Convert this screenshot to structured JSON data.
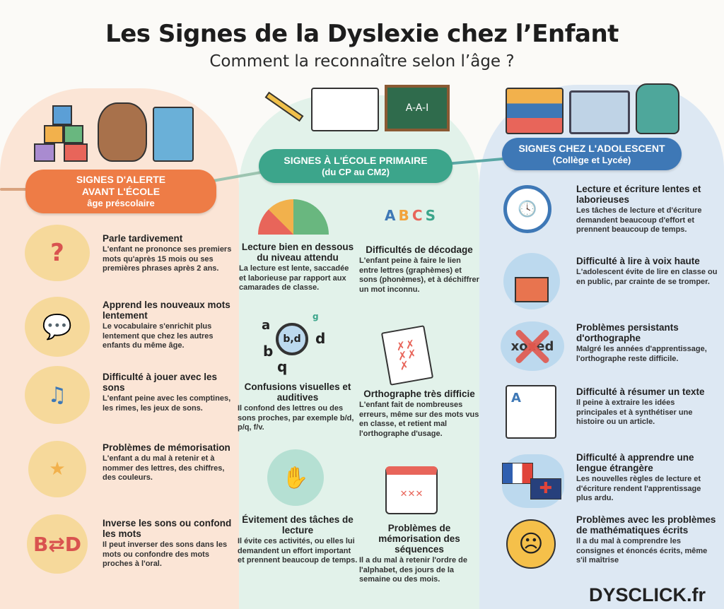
{
  "header": {
    "title": "Les Signes de la Dyslexie chez l’Enfant",
    "subtitle": "Comment la reconnaître selon l’âge ?"
  },
  "colors": {
    "preschool": "#ee7c46",
    "primary": "#3ca58b",
    "teen": "#3e78b6"
  },
  "sections": {
    "preschool": {
      "badge_line1": "SIGNES D'ALERTE",
      "badge_line2": "AVANT L'ÉCOLE",
      "badge_line3": "âge préscolaire",
      "illustration_icons": [
        "blocks-icon",
        "teddy-bear-icon",
        "picture-book-icon"
      ],
      "items": [
        {
          "title": "Parle tardivement",
          "text": "L'enfant ne prononce ses premiers mots qu'après 15 mois ou ses premières phrases après 2 ans.",
          "icon": "confused-child-clock-icon"
        },
        {
          "title": "Apprend les nouveaux mots lentement",
          "text": "Le vocabulaire s'enrichit plus lentement que chez les autres enfants du même âge.",
          "icon": "speech-bubbles-icon"
        },
        {
          "title": "Difficulté à jouer avec les sons",
          "text": "L'enfant peine avec les comptines, les rimes, les jeux de sons.",
          "icon": "singing-child-icon"
        },
        {
          "title": "Problèmes de mémorisation",
          "text": "L'enfant a du mal à retenir et à nommer des lettres, des chiffres, des couleurs.",
          "icon": "memory-cards-icon"
        },
        {
          "title": "Inverse les sons ou confond les mots",
          "text": "Il peut inverser des sons dans les mots ou confondre des mots proches à l'oral.",
          "icon": "swap-letters-icon"
        }
      ]
    },
    "primary": {
      "badge_line1": "SIGNES À L'ÉCOLE PRIMAIRE",
      "badge_line2": "(du CP au CM2)",
      "illustration_icons": [
        "pencils-icon",
        "open-book-icon",
        "chalkboard-icon"
      ],
      "chalkboard_text": "A-A-I",
      "items": [
        {
          "title": "Lecture bien en dessous du niveau attendu",
          "text": "La lecture est lente, saccadée et laborieuse par rapport aux camarades de classe.",
          "icon": "gauge-icon"
        },
        {
          "title": "Difficultés de décodage",
          "text": "L'enfant peine à faire le lien entre lettres (graphèmes) et sons (phonèmes), et à déchiffrer un mot inconnu.",
          "icon": "letters-sounds-icon",
          "letters": [
            "A",
            "B",
            "C",
            "S"
          ]
        },
        {
          "title": "Confusions visuelles et auditives",
          "text": "Il confond des lettres ou des sons proches, par exemple b/d, p/q, f/v.",
          "icon": "magnifier-letters-icon",
          "letters": [
            "a",
            "b,d",
            "d",
            "b",
            "q",
            "g"
          ]
        },
        {
          "title": "Orthographe très difficie",
          "text": "L'enfant fait de nombreuses erreurs, même sur des mots vus en classe, et retient mal l'orthographe d'usage.",
          "icon": "corrected-paper-icon"
        },
        {
          "title": "Évitement des tâches de lecture",
          "text": "Il évite ces activités, ou elles lui demandent un effort important et prennent beaucoup de temps.",
          "icon": "child-refusing-book-icon"
        },
        {
          "title": "Problèmes de mémorisation des séquences",
          "text": "Il a du mal à retenir l'ordre de l'alphabet, des jours de la semaine ou des mois.",
          "icon": "calendar-icon"
        }
      ]
    },
    "teen": {
      "badge_line1": "SIGNES CHEZ L'ADOLESCENT",
      "badge_line2": "(Collège et Lycée)",
      "illustration_icons": [
        "books-stack-icon",
        "laptop-icon",
        "backpack-icon"
      ],
      "items": [
        {
          "title": "Lecture et écriture lentes et laborieuses",
          "text": "Les tâches de lecture et d'écriture demandent beaucoup d'effort et prennent beaucoup de temps.",
          "icon": "clock-pen-icon"
        },
        {
          "title": "Difficulté à lire à voix haute",
          "text": "L'adolescent évite de lire en classe ou en public, par crainte de se tromper.",
          "icon": "teen-reading-icon"
        },
        {
          "title": "Problèmes persistants d'orthographe",
          "text": "Malgré les années d'apprentissage, l'orthographe reste difficile.",
          "icon": "crossed-word-icon",
          "word": "xoxed"
        },
        {
          "title": "Difficulté à résumer un texte",
          "text": "Il peine à extraire les idées principales et à synthétiser une histoire ou un article.",
          "icon": "document-scroll-icon"
        },
        {
          "title": "Difficulté à apprendre une lengue étrangère",
          "text": "Les nouvelles règles de lecture et d'écriture rendent l'apprentissage plus ardu.",
          "icon": "flags-icon"
        },
        {
          "title": "Problèmes avec les problèmes de mathématiques écrits",
          "text": "Il a du mal à comprendre les consignes et énoncés écrits, même s'il maîtrise",
          "icon": "worried-face-icon"
        }
      ]
    }
  },
  "footer": {
    "brand": "DYSCLICK.fr"
  }
}
